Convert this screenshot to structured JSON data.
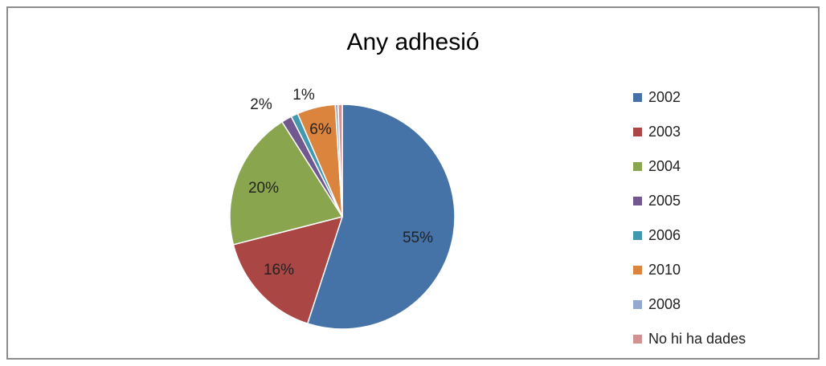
{
  "chart_data": {
    "type": "pie",
    "title": "Any adhesió",
    "legend_position": "right",
    "slices": [
      {
        "label": "2002",
        "value": 55,
        "pct_label": "55%",
        "color": "#4572A7"
      },
      {
        "label": "2003",
        "value": 16,
        "pct_label": "16%",
        "color": "#AA4643"
      },
      {
        "label": "2004",
        "value": 20,
        "pct_label": "20%",
        "color": "#89A54E"
      },
      {
        "label": "2005",
        "value": 1.5,
        "pct_label": "2%",
        "color": "#71588F"
      },
      {
        "label": "2006",
        "value": 1.0,
        "pct_label": "1%",
        "color": "#4198AF"
      },
      {
        "label": "2010",
        "value": 5.5,
        "pct_label": "6%",
        "color": "#DB843D"
      },
      {
        "label": "2008",
        "value": 0.4,
        "pct_label": "",
        "color": "#93A9CF"
      },
      {
        "label": "No hi ha dades",
        "value": 0.6,
        "pct_label": "",
        "color": "#D19392"
      }
    ]
  }
}
